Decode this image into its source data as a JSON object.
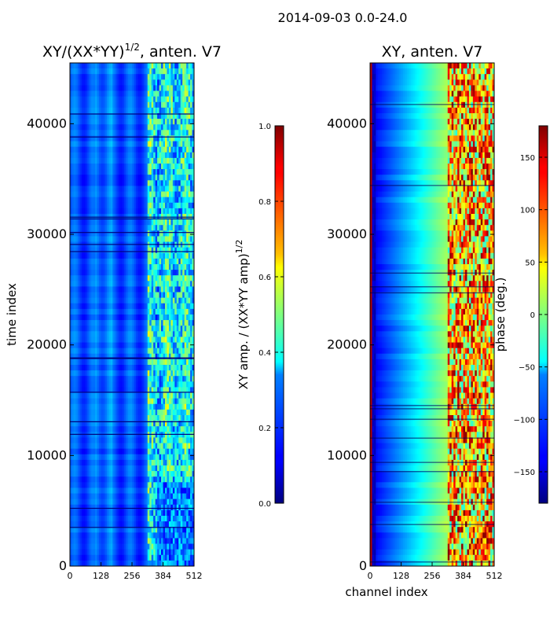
{
  "figure_title": "2014-09-03 0.0-24.0",
  "chart_data": [
    {
      "type": "heatmap",
      "title_main": "XY/(XX*YY)",
      "title_exp": "1/2",
      "title_rest": ", anten. V7",
      "xlabel": "",
      "ylabel": "time index",
      "xlim": [
        0,
        512
      ],
      "ylim": [
        0,
        45500
      ],
      "xticks": [
        "0",
        "128",
        "256",
        "384",
        "512"
      ],
      "xtick_values": [
        0,
        128,
        256,
        384,
        512
      ],
      "yticks": [
        "0",
        "10000",
        "20000",
        "30000",
        "40000"
      ],
      "ytick_values": [
        0,
        10000,
        20000,
        30000,
        40000
      ],
      "colormap": "jet",
      "colorbar": {
        "label_main": "XY amp. / (XX*YY amp)",
        "label_exp": "1/2",
        "range": [
          0.0,
          1.0
        ],
        "ticks": [
          "0.0",
          "0.2",
          "0.4",
          "0.6",
          "0.8",
          "1.0"
        ],
        "tick_values": [
          0.0,
          0.2,
          0.4,
          0.6,
          0.8,
          1.0
        ]
      },
      "description": "mostly blue (~0.15-0.25) with lighter vertical bands; higher values (0.3-0.6) in channels ~330-480"
    },
    {
      "type": "heatmap",
      "title": "XY, anten. V7",
      "xlabel": "channel index",
      "ylabel": "",
      "xlim": [
        0,
        512
      ],
      "ylim": [
        0,
        45500
      ],
      "xticks": [
        "0",
        "128",
        "256",
        "384",
        "512"
      ],
      "xtick_values": [
        0,
        128,
        256,
        384,
        512
      ],
      "yticks": [
        "0",
        "10000",
        "20000",
        "30000",
        "40000"
      ],
      "ytick_values": [
        0,
        10000,
        20000,
        30000,
        40000
      ],
      "colormap": "jet",
      "colorbar": {
        "label": "phase (deg.)",
        "range": [
          -180,
          180
        ],
        "ticks": [
          "−150",
          "−100",
          "−50",
          "0",
          "50",
          "100",
          "150"
        ],
        "tick_values": [
          -150,
          -100,
          -50,
          0,
          50,
          100,
          150
        ]
      },
      "description": "phase ~180 at channels 0-10, ~-160 at low channels rising to ~0-60 near channel 300, noisy/wrapping above channel 330"
    }
  ],
  "colors": {
    "jet_dark_blue": "#00007f",
    "jet_blue": "#0000ff",
    "jet_cyan": "#00ffff",
    "jet_yellow": "#ffff00",
    "jet_red": "#ff0000",
    "jet_dark_red": "#7f0000"
  }
}
